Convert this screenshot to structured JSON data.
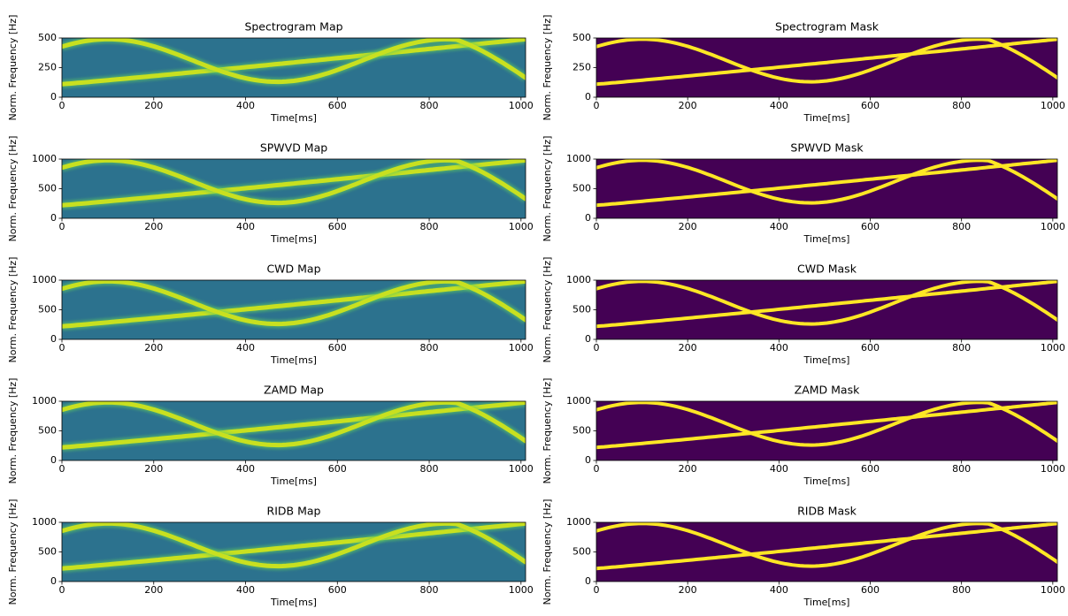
{
  "chart_data": [
    {
      "type": "heatmap",
      "title": "Spectrogram Map",
      "colormap": "viridis",
      "x_label": "Time[ms]",
      "y_label": "Norm. Frequency [Hz]",
      "xlim": [
        0,
        1010
      ],
      "ylim": [
        0,
        500
      ],
      "xticks": [
        0,
        200,
        400,
        600,
        800,
        1000
      ],
      "yticks": [
        0,
        250,
        500
      ]
    },
    {
      "type": "heatmap",
      "title": "Spectrogram Mask",
      "colormap": "viridis",
      "x_label": "Time[ms]",
      "y_label": "Norm. Frequency [Hz]",
      "xlim": [
        0,
        1010
      ],
      "ylim": [
        0,
        500
      ],
      "xticks": [
        0,
        200,
        400,
        600,
        800,
        1000
      ],
      "yticks": [
        0,
        250,
        500
      ]
    },
    {
      "type": "heatmap",
      "title": "SPWVD Map",
      "colormap": "viridis",
      "x_label": "Time[ms]",
      "y_label": "Norm. Frequency [Hz]",
      "xlim": [
        0,
        1010
      ],
      "ylim": [
        0,
        1000
      ],
      "xticks": [
        0,
        200,
        400,
        600,
        800,
        1000
      ],
      "yticks": [
        0,
        500,
        1000
      ]
    },
    {
      "type": "heatmap",
      "title": "SPWVD Mask",
      "colormap": "viridis",
      "x_label": "Time[ms]",
      "y_label": "Norm. Frequency [Hz]",
      "xlim": [
        0,
        1010
      ],
      "ylim": [
        0,
        1000
      ],
      "xticks": [
        0,
        200,
        400,
        600,
        800,
        1000
      ],
      "yticks": [
        0,
        500,
        1000
      ]
    },
    {
      "type": "heatmap",
      "title": "CWD Map",
      "colormap": "viridis",
      "x_label": "Time[ms]",
      "y_label": "Norm. Frequency [Hz]",
      "xlim": [
        0,
        1010
      ],
      "ylim": [
        0,
        1000
      ],
      "xticks": [
        0,
        200,
        400,
        600,
        800,
        1000
      ],
      "yticks": [
        0,
        500,
        1000
      ]
    },
    {
      "type": "heatmap",
      "title": "CWD Mask",
      "colormap": "viridis",
      "x_label": "Time[ms]",
      "y_label": "Norm. Frequency [Hz]",
      "xlim": [
        0,
        1010
      ],
      "ylim": [
        0,
        1000
      ],
      "xticks": [
        0,
        200,
        400,
        600,
        800,
        1000
      ],
      "yticks": [
        0,
        500,
        1000
      ]
    },
    {
      "type": "heatmap",
      "title": "ZAMD Map",
      "colormap": "viridis",
      "x_label": "Time[ms]",
      "y_label": "Norm. Frequency [Hz]",
      "xlim": [
        0,
        1010
      ],
      "ylim": [
        0,
        1000
      ],
      "xticks": [
        0,
        200,
        400,
        600,
        800,
        1000
      ],
      "yticks": [
        0,
        500,
        1000
      ]
    },
    {
      "type": "heatmap",
      "title": "ZAMD Mask",
      "colormap": "viridis",
      "x_label": "Time[ms]",
      "y_label": "Norm. Frequency [Hz]",
      "xlim": [
        0,
        1010
      ],
      "ylim": [
        0,
        1000
      ],
      "xticks": [
        0,
        200,
        400,
        600,
        800,
        1000
      ],
      "yticks": [
        0,
        500,
        1000
      ]
    },
    {
      "type": "heatmap",
      "title": "RIDB Map",
      "colormap": "viridis",
      "x_label": "Time[ms]",
      "y_label": "Norm. Frequency [Hz]",
      "xlim": [
        0,
        1010
      ],
      "ylim": [
        0,
        1000
      ],
      "xticks": [
        0,
        200,
        400,
        600,
        800,
        1000
      ],
      "yticks": [
        0,
        500,
        1000
      ]
    },
    {
      "type": "heatmap",
      "title": "RIDB Mask",
      "colormap": "viridis",
      "x_label": "Time[ms]",
      "y_label": "Norm. Frequency [Hz]",
      "xlim": [
        0,
        1010
      ],
      "ylim": [
        0,
        1000
      ],
      "xticks": [
        0,
        200,
        400,
        600,
        800,
        1000
      ],
      "yticks": [
        0,
        500,
        1000
      ]
    }
  ]
}
